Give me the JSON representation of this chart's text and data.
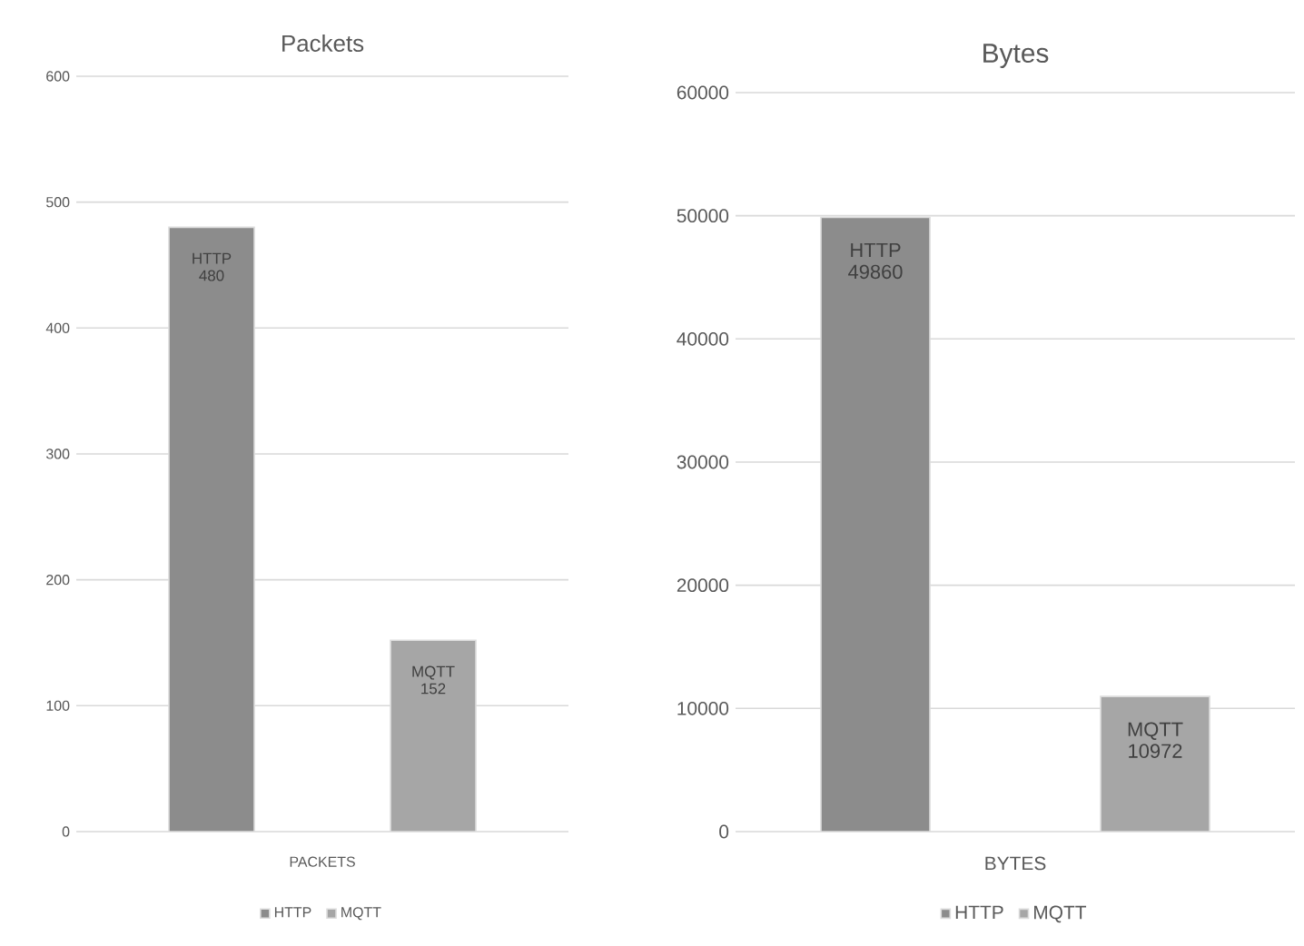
{
  "chart_data": [
    {
      "type": "bar",
      "title": "Packets",
      "categories": [
        "PACKETS"
      ],
      "series": [
        {
          "name": "HTTP",
          "color": "#8c8c8c",
          "values": [
            480
          ]
        },
        {
          "name": "MQTT",
          "color": "#a6a6a6",
          "values": [
            152
          ]
        }
      ],
      "ylim": [
        0,
        600
      ],
      "yticks": [
        0,
        100,
        200,
        300,
        400,
        500,
        600
      ],
      "grid": "y",
      "legend": "bottom",
      "data_labels": true
    },
    {
      "type": "bar",
      "title": "Bytes",
      "categories": [
        "BYTES"
      ],
      "series": [
        {
          "name": "HTTP",
          "color": "#8c8c8c",
          "values": [
            49860
          ]
        },
        {
          "name": "MQTT",
          "color": "#a6a6a6",
          "values": [
            10972
          ]
        }
      ],
      "ylim": [
        0,
        60000
      ],
      "yticks": [
        0,
        10000,
        20000,
        30000,
        40000,
        50000,
        60000
      ],
      "grid": "y",
      "legend": "bottom",
      "data_labels": true
    }
  ]
}
